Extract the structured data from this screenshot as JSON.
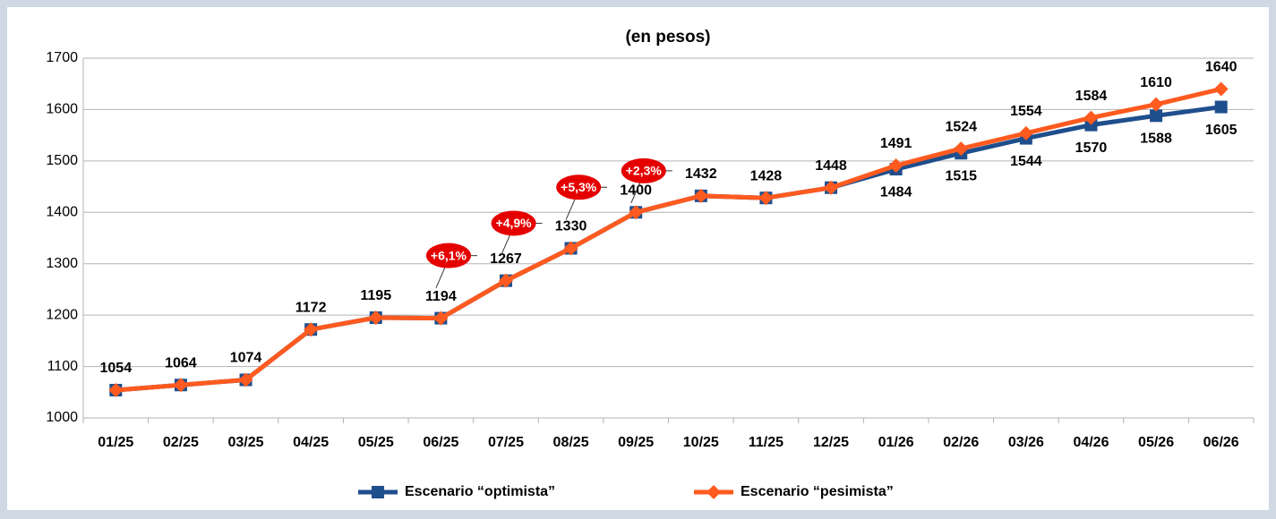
{
  "chart_data": {
    "type": "line",
    "title": "(en pesos)",
    "categories": [
      "01/25",
      "02/25",
      "03/25",
      "04/25",
      "05/25",
      "06/25",
      "07/25",
      "08/25",
      "09/25",
      "10/25",
      "11/25",
      "12/25",
      "01/26",
      "02/26",
      "03/26",
      "04/26",
      "05/26",
      "06/26"
    ],
    "series": [
      {
        "name": "Escenario “optimista”",
        "color": "#1f4e8c",
        "marker": "square",
        "values": [
          1054,
          1064,
          1074,
          1172,
          1195,
          1194,
          1267,
          1330,
          1400,
          1432,
          1428,
          1448,
          1484,
          1515,
          1544,
          1570,
          1588,
          1605
        ]
      },
      {
        "name": "Escenario “pesimista”",
        "color": "#ff5a1f",
        "marker": "diamond",
        "values": [
          1054,
          1064,
          1074,
          1172,
          1195,
          1194,
          1267,
          1330,
          1400,
          1432,
          1428,
          1448,
          1491,
          1524,
          1554,
          1584,
          1610,
          1640
        ]
      }
    ],
    "annotations": [
      {
        "text": "+6,1%",
        "x": "07/25"
      },
      {
        "text": "+4,9%",
        "x": "08/25"
      },
      {
        "text": "+5,3%",
        "x": "09/25"
      },
      {
        "text": "+2,3%",
        "x": "10/25"
      }
    ],
    "ylim": [
      1000,
      1700
    ],
    "yticks": [
      1000,
      1100,
      1200,
      1300,
      1400,
      1500,
      1600,
      1700
    ],
    "grid": true,
    "legend": "bottom"
  }
}
